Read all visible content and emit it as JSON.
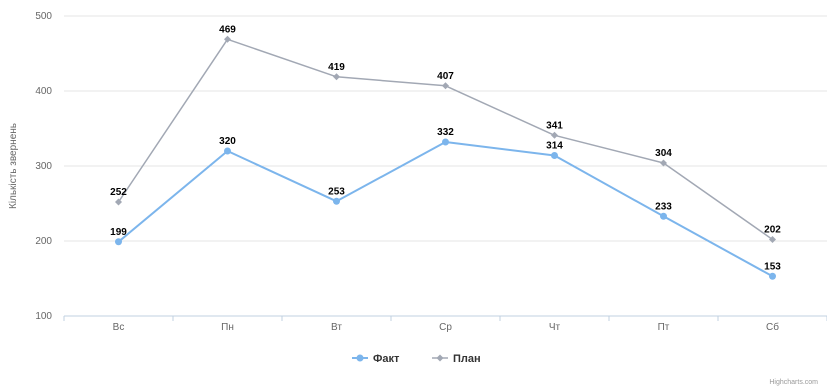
{
  "chart_data": {
    "type": "line",
    "title": "",
    "xlabel": "",
    "ylabel": "Кількість звернень",
    "categories": [
      "Вс",
      "Пн",
      "Вт",
      "Ср",
      "Чт",
      "Пт",
      "Сб"
    ],
    "ylim": [
      100,
      500
    ],
    "yticks": [
      100,
      200,
      300,
      400,
      500
    ],
    "grid": true,
    "legend": "bottom-center",
    "series": [
      {
        "name": "Факт",
        "color": "#7cb5ec",
        "values": [
          199,
          320,
          253,
          332,
          314,
          233,
          153
        ]
      },
      {
        "name": "План",
        "color": "#a2a8b4",
        "values": [
          252,
          469,
          419,
          407,
          341,
          304,
          202
        ]
      }
    ],
    "credit": "Highcharts.com"
  }
}
